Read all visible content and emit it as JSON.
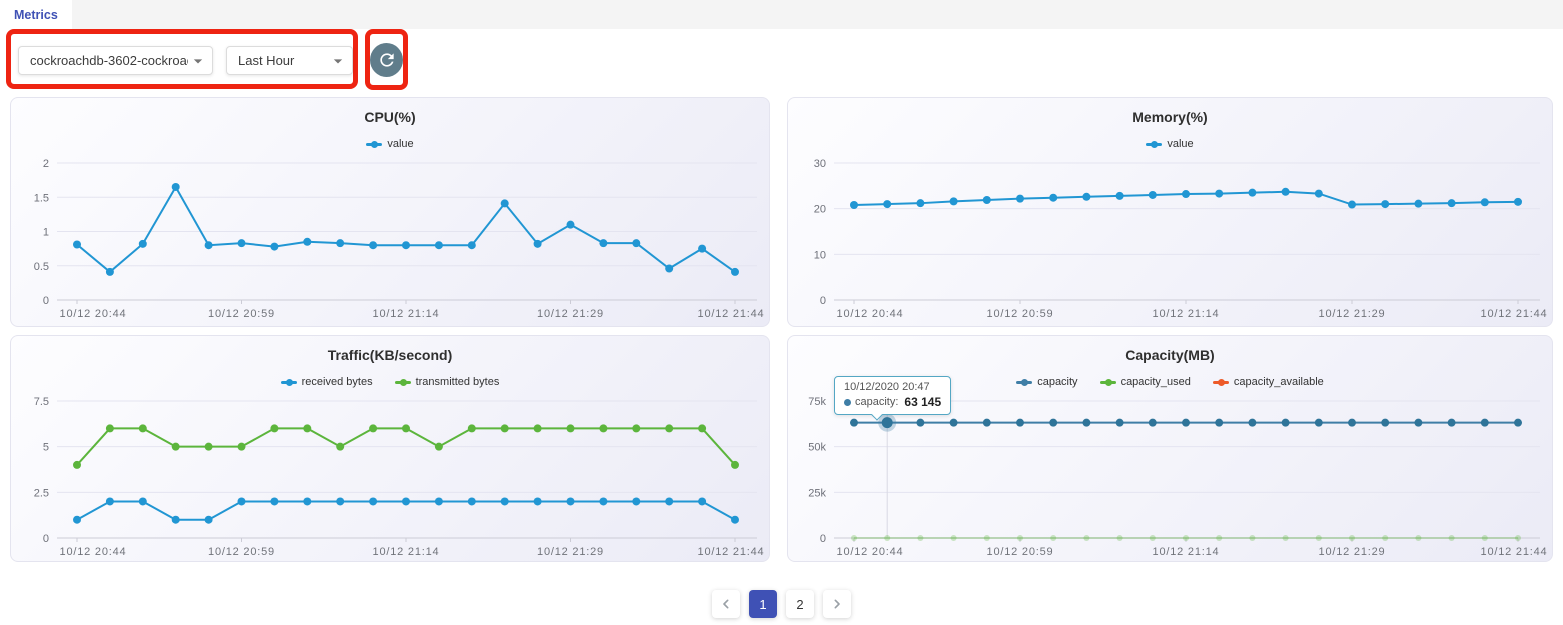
{
  "tabs": [
    {
      "label": "Metrics"
    }
  ],
  "toolbar": {
    "cluster_select": {
      "value": "cockroachdb-3602-cockroac...",
      "icon": "caret-down"
    },
    "time_select": {
      "value": "Last Hour",
      "icon": "caret-down"
    },
    "refresh_button": {
      "icon": "refresh"
    }
  },
  "colors": {
    "accent": "#3f51b5",
    "annotation": "#ee2412",
    "refresh_bg": "#607d8b",
    "series_blue": "#2196d3",
    "series_green": "#5cb53c",
    "series_orange": "#ed5a29",
    "capacity_blue": "#3f7ea6"
  },
  "pagination": {
    "prev_icon": "chevron-left",
    "next_icon": "chevron-right",
    "pages": [
      "1",
      "2"
    ],
    "active_page": "1"
  },
  "chart_data": [
    {
      "type": "line",
      "title": "CPU(%)",
      "categories": [
        "10/12 20:44",
        "10/12 20:47",
        "10/12 20:50",
        "10/12 20:53",
        "10/12 20:56",
        "10/12 20:59",
        "10/12 21:02",
        "10/12 21:05",
        "10/12 21:08",
        "10/12 21:11",
        "10/12 21:14",
        "10/12 21:17",
        "10/12 21:20",
        "10/12 21:23",
        "10/12 21:26",
        "10/12 21:29",
        "10/12 21:32",
        "10/12 21:35",
        "10/12 21:38",
        "10/12 21:41",
        "10/12 21:44"
      ],
      "x_tick_indices": [
        0,
        5,
        10,
        15,
        20
      ],
      "x_tick_labels": [
        "10/12 20:44",
        "10/12 20:59",
        "10/12 21:14",
        "10/12 21:29",
        "10/12 21:44"
      ],
      "y_ticks": [
        0,
        0.5,
        1,
        1.5,
        2
      ],
      "y_tick_labels": [
        "0",
        "0.5",
        "1",
        "1.5",
        "2"
      ],
      "ylim": [
        0,
        2
      ],
      "grid": true,
      "legend_position": "top",
      "series": [
        {
          "name": "value",
          "color": "#2196d3",
          "values": [
            0.81,
            0.41,
            0.82,
            1.65,
            0.8,
            0.83,
            0.78,
            0.85,
            0.83,
            0.8,
            0.8,
            0.8,
            0.8,
            1.41,
            0.82,
            1.1,
            0.83,
            0.83,
            0.46,
            0.75,
            0.41
          ]
        }
      ]
    },
    {
      "type": "line",
      "title": "Memory(%)",
      "categories": [
        "10/12 20:44",
        "10/12 20:47",
        "10/12 20:50",
        "10/12 20:53",
        "10/12 20:56",
        "10/12 20:59",
        "10/12 21:02",
        "10/12 21:05",
        "10/12 21:08",
        "10/12 21:11",
        "10/12 21:14",
        "10/12 21:17",
        "10/12 21:20",
        "10/12 21:23",
        "10/12 21:26",
        "10/12 21:29",
        "10/12 21:32",
        "10/12 21:35",
        "10/12 21:38",
        "10/12 21:41",
        "10/12 21:44"
      ],
      "x_tick_indices": [
        0,
        5,
        10,
        15,
        20
      ],
      "x_tick_labels": [
        "10/12 20:44",
        "10/12 20:59",
        "10/12 21:14",
        "10/12 21:29",
        "10/12 21:44"
      ],
      "y_ticks": [
        0,
        10,
        20,
        30
      ],
      "y_tick_labels": [
        "0",
        "10",
        "20",
        "30"
      ],
      "ylim": [
        0,
        30
      ],
      "grid": true,
      "legend_position": "top",
      "series": [
        {
          "name": "value",
          "color": "#2196d3",
          "values": [
            20.8,
            21.0,
            21.2,
            21.6,
            21.9,
            22.2,
            22.4,
            22.6,
            22.8,
            23.0,
            23.2,
            23.3,
            23.5,
            23.7,
            23.3,
            20.9,
            21.0,
            21.1,
            21.2,
            21.4,
            21.5
          ]
        }
      ]
    },
    {
      "type": "line",
      "title": "Traffic(KB/second)",
      "categories": [
        "10/12 20:44",
        "10/12 20:47",
        "10/12 20:50",
        "10/12 20:53",
        "10/12 20:56",
        "10/12 20:59",
        "10/12 21:02",
        "10/12 21:05",
        "10/12 21:08",
        "10/12 21:11",
        "10/12 21:14",
        "10/12 21:17",
        "10/12 21:20",
        "10/12 21:23",
        "10/12 21:26",
        "10/12 21:29",
        "10/12 21:32",
        "10/12 21:35",
        "10/12 21:38",
        "10/12 21:41",
        "10/12 21:44"
      ],
      "x_tick_indices": [
        0,
        5,
        10,
        15,
        20
      ],
      "x_tick_labels": [
        "10/12 20:44",
        "10/12 20:59",
        "10/12 21:14",
        "10/12 21:29",
        "10/12 21:44"
      ],
      "y_ticks": [
        0,
        2.5,
        5,
        7.5
      ],
      "y_tick_labels": [
        "0",
        "2.5",
        "5",
        "7.5"
      ],
      "ylim": [
        0,
        7.5
      ],
      "grid": true,
      "legend_position": "top",
      "series": [
        {
          "name": "received bytes",
          "color": "#2196d3",
          "values": [
            1,
            2,
            2,
            1,
            1,
            2,
            2,
            2,
            2,
            2,
            2,
            2,
            2,
            2,
            2,
            2,
            2,
            2,
            2,
            2,
            1
          ]
        },
        {
          "name": "transmitted bytes",
          "color": "#5cb53c",
          "values": [
            4,
            6,
            6,
            5,
            5,
            5,
            6,
            6,
            5,
            6,
            6,
            5,
            6,
            6,
            6,
            6,
            6,
            6,
            6,
            6,
            4
          ]
        }
      ]
    },
    {
      "type": "line",
      "title": "Capacity(MB)",
      "categories": [
        "10/12 20:44",
        "10/12 20:47",
        "10/12 20:50",
        "10/12 20:53",
        "10/12 20:56",
        "10/12 20:59",
        "10/12 21:02",
        "10/12 21:05",
        "10/12 21:08",
        "10/12 21:11",
        "10/12 21:14",
        "10/12 21:17",
        "10/12 21:20",
        "10/12 21:23",
        "10/12 21:26",
        "10/12 21:29",
        "10/12 21:32",
        "10/12 21:35",
        "10/12 21:38",
        "10/12 21:41",
        "10/12 21:44"
      ],
      "x_tick_indices": [
        0,
        5,
        10,
        15,
        20
      ],
      "x_tick_labels": [
        "10/12 20:44",
        "10/12 20:59",
        "10/12 21:14",
        "10/12 21:29",
        "10/12 21:44"
      ],
      "y_ticks": [
        0,
        25000,
        50000,
        75000
      ],
      "y_tick_labels": [
        "0",
        "25k",
        "50k",
        "75k"
      ],
      "ylim": [
        0,
        75000
      ],
      "grid": true,
      "legend_position": "top",
      "series": [
        {
          "name": "capacity",
          "color": "#3f7ea6",
          "point_color": "#2f7499",
          "values": [
            63145,
            63145,
            63145,
            63145,
            63145,
            63145,
            63145,
            63145,
            63145,
            63145,
            63145,
            63145,
            63145,
            63145,
            63145,
            63145,
            63145,
            63145,
            63145,
            63145,
            63145
          ]
        },
        {
          "name": "capacity_used",
          "color": "#5cb53c",
          "opacity": 0.3,
          "point_radius": 3,
          "values": [
            0,
            0,
            0,
            0,
            0,
            0,
            0,
            0,
            0,
            0,
            0,
            0,
            0,
            0,
            0,
            0,
            0,
            0,
            0,
            0,
            0
          ]
        },
        {
          "name": "capacity_available",
          "color": "#ed5a29",
          "values": []
        }
      ],
      "tooltip": {
        "point_index": 1,
        "date": "10/12/2020 20:47",
        "series_label": "capacity:",
        "value": "63 145"
      }
    }
  ]
}
